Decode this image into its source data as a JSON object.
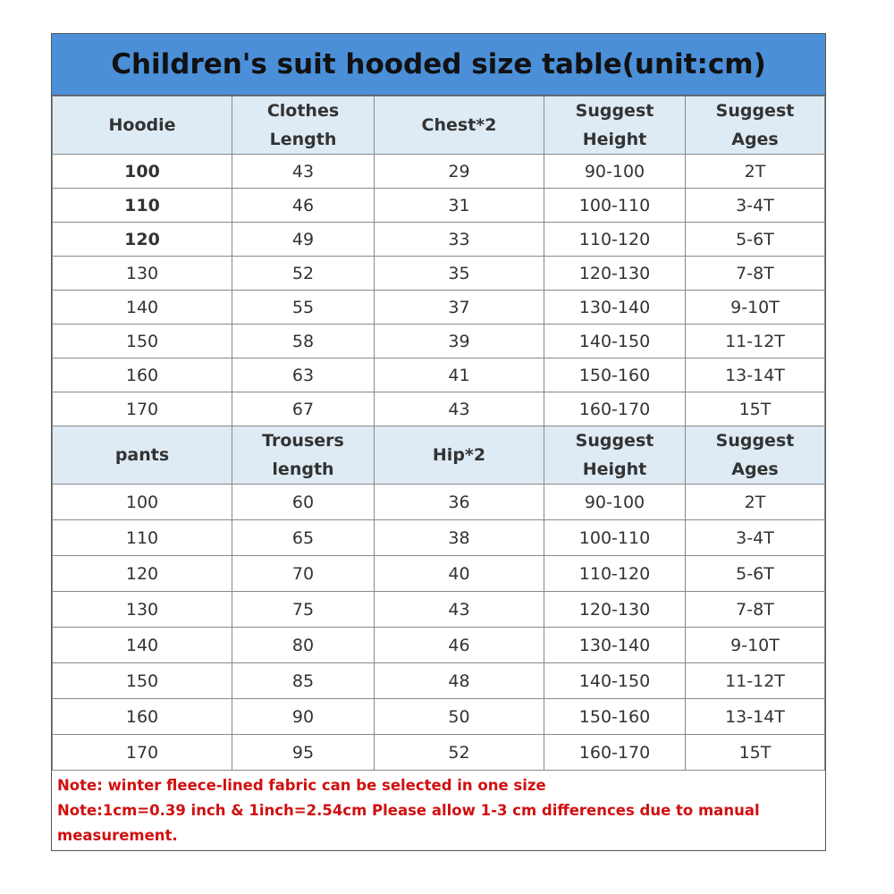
{
  "title": "Children's suit hooded size table(unit:cm)",
  "hoodie": {
    "headers": [
      "Hoodie",
      "Clothes\nLength",
      "Chest*2",
      "Suggest\nHeight",
      "Suggest\nAges"
    ],
    "rows": [
      [
        "100",
        "43",
        "29",
        "90-100",
        "2T"
      ],
      [
        "110",
        "46",
        "31",
        "100-110",
        "3-4T"
      ],
      [
        "120",
        "49",
        "33",
        "110-120",
        "5-6T"
      ],
      [
        "130",
        "52",
        "35",
        "120-130",
        "7-8T"
      ],
      [
        "140",
        "55",
        "37",
        "130-140",
        "9-10T"
      ],
      [
        "150",
        "58",
        "39",
        "140-150",
        "11-12T"
      ],
      [
        "160",
        "63",
        "41",
        "150-160",
        "13-14T"
      ],
      [
        "170",
        "67",
        "43",
        "160-170",
        "15T"
      ]
    ]
  },
  "pants": {
    "headers": [
      "pants",
      "Trousers\nlength",
      "Hip*2",
      "Suggest\nHeight",
      "Suggest\nAges"
    ],
    "rows": [
      [
        "100",
        "60",
        "36",
        "90-100",
        "2T"
      ],
      [
        "110",
        "65",
        "38",
        "100-110",
        "3-4T"
      ],
      [
        "120",
        "70",
        "40",
        "110-120",
        "5-6T"
      ],
      [
        "130",
        "75",
        "43",
        "120-130",
        "7-8T"
      ],
      [
        "140",
        "80",
        "46",
        "130-140",
        "9-10T"
      ],
      [
        "150",
        "85",
        "48",
        "140-150",
        "11-12T"
      ],
      [
        "160",
        "90",
        "50",
        "150-160",
        "13-14T"
      ],
      [
        "170",
        "95",
        "52",
        "160-170",
        "15T"
      ]
    ]
  },
  "notes": [
    "Note: winter fleece-lined fabric can be selected in one size",
    "Note:1cm=0.39 inch & 1inch=2.54cm Please allow 1-3 cm differences due to manual measurement."
  ]
}
